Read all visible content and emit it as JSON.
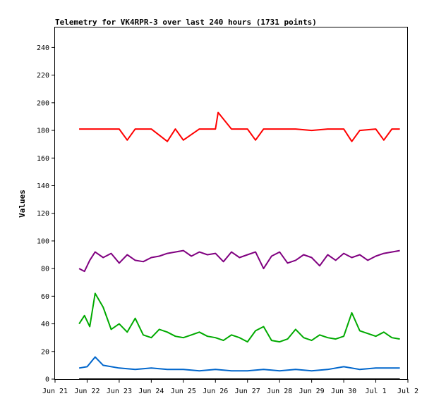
{
  "chart_data": {
    "type": "line",
    "title": "Telemetry for VK4RPR-3 over last 240 hours (1731 points)",
    "xlabel": "",
    "ylabel": "Values",
    "ylim": [
      0,
      255
    ],
    "yticks": [
      0,
      20,
      40,
      60,
      80,
      100,
      120,
      140,
      160,
      180,
      200,
      220,
      240
    ],
    "xlim": [
      "2024-06-21",
      "2024-07-02"
    ],
    "xticks": [
      "Jun 21",
      "Jun 22",
      "Jun 23",
      "Jun 24",
      "Jun 25",
      "Jun 26",
      "Jun 27",
      "Jun 28",
      "Jun 29",
      "Jun 30",
      "Jul 1",
      "Jul 2"
    ],
    "grid": false,
    "series": [
      {
        "color": "#ff0000",
        "x": [
          "2024-06-21T18:00",
          "2024-06-22T06:00",
          "2024-06-22T12:00",
          "2024-06-23T00:00",
          "2024-06-23T06:00",
          "2024-06-23T12:00",
          "2024-06-24T00:00",
          "2024-06-24T12:00",
          "2024-06-24T18:00",
          "2024-06-25T00:00",
          "2024-06-25T12:00",
          "2024-06-26T00:00",
          "2024-06-26T02:00",
          "2024-06-26T12:00",
          "2024-06-27T00:00",
          "2024-06-27T06:00",
          "2024-06-27T12:00",
          "2024-06-28T00:00",
          "2024-06-28T12:00",
          "2024-06-29T00:00",
          "2024-06-29T12:00",
          "2024-06-30T00:00",
          "2024-06-30T06:00",
          "2024-06-30T12:00",
          "2024-07-01T00:00",
          "2024-07-01T06:00",
          "2024-07-01T12:00",
          "2024-07-01T18:00"
        ],
        "y": [
          181,
          181,
          181,
          181,
          173,
          181,
          181,
          172,
          181,
          173,
          181,
          181,
          193,
          181,
          181,
          173,
          181,
          181,
          181,
          180,
          181,
          181,
          172,
          180,
          181,
          173,
          181,
          181
        ]
      },
      {
        "color": "#800080",
        "x": [
          "2024-06-21T18:00",
          "2024-06-21T22:00",
          "2024-06-22T02:00",
          "2024-06-22T06:00",
          "2024-06-22T12:00",
          "2024-06-22T18:00",
          "2024-06-23T00:00",
          "2024-06-23T06:00",
          "2024-06-23T12:00",
          "2024-06-23T18:00",
          "2024-06-24T00:00",
          "2024-06-24T06:00",
          "2024-06-24T12:00",
          "2024-06-24T18:00",
          "2024-06-25T00:00",
          "2024-06-25T06:00",
          "2024-06-25T12:00",
          "2024-06-25T18:00",
          "2024-06-26T00:00",
          "2024-06-26T06:00",
          "2024-06-26T12:00",
          "2024-06-26T18:00",
          "2024-06-27T00:00",
          "2024-06-27T06:00",
          "2024-06-27T12:00",
          "2024-06-27T18:00",
          "2024-06-28T00:00",
          "2024-06-28T06:00",
          "2024-06-28T12:00",
          "2024-06-28T18:00",
          "2024-06-29T00:00",
          "2024-06-29T06:00",
          "2024-06-29T12:00",
          "2024-06-29T18:00",
          "2024-06-30T00:00",
          "2024-06-30T06:00",
          "2024-06-30T12:00",
          "2024-06-30T18:00",
          "2024-07-01T00:00",
          "2024-07-01T06:00",
          "2024-07-01T12:00",
          "2024-07-01T18:00"
        ],
        "y": [
          80,
          78,
          86,
          92,
          88,
          91,
          84,
          90,
          86,
          85,
          88,
          89,
          91,
          92,
          93,
          89,
          92,
          90,
          91,
          85,
          92,
          88,
          90,
          92,
          80,
          89,
          92,
          84,
          86,
          90,
          88,
          82,
          90,
          86,
          91,
          88,
          90,
          86,
          89,
          91,
          92,
          93
        ]
      },
      {
        "color": "#00aa00",
        "x": [
          "2024-06-21T18:00",
          "2024-06-21T22:00",
          "2024-06-22T02:00",
          "2024-06-22T06:00",
          "2024-06-22T12:00",
          "2024-06-22T18:00",
          "2024-06-23T00:00",
          "2024-06-23T06:00",
          "2024-06-23T12:00",
          "2024-06-23T18:00",
          "2024-06-24T00:00",
          "2024-06-24T06:00",
          "2024-06-24T12:00",
          "2024-06-24T18:00",
          "2024-06-25T00:00",
          "2024-06-25T06:00",
          "2024-06-25T12:00",
          "2024-06-25T18:00",
          "2024-06-26T00:00",
          "2024-06-26T06:00",
          "2024-06-26T12:00",
          "2024-06-26T18:00",
          "2024-06-27T00:00",
          "2024-06-27T06:00",
          "2024-06-27T12:00",
          "2024-06-27T18:00",
          "2024-06-28T00:00",
          "2024-06-28T06:00",
          "2024-06-28T12:00",
          "2024-06-28T18:00",
          "2024-06-29T00:00",
          "2024-06-29T06:00",
          "2024-06-29T12:00",
          "2024-06-29T18:00",
          "2024-06-30T00:00",
          "2024-06-30T06:00",
          "2024-06-30T12:00",
          "2024-06-30T18:00",
          "2024-07-01T00:00",
          "2024-07-01T06:00",
          "2024-07-01T12:00",
          "2024-07-01T18:00"
        ],
        "y": [
          40,
          46,
          38,
          62,
          52,
          36,
          40,
          34,
          44,
          32,
          30,
          36,
          34,
          31,
          30,
          32,
          34,
          31,
          30,
          28,
          32,
          30,
          27,
          35,
          38,
          28,
          27,
          29,
          36,
          30,
          28,
          32,
          30,
          29,
          31,
          48,
          35,
          33,
          31,
          34,
          30,
          29
        ]
      },
      {
        "color": "#0066cc",
        "x": [
          "2024-06-21T18:00",
          "2024-06-22T00:00",
          "2024-06-22T06:00",
          "2024-06-22T12:00",
          "2024-06-23T00:00",
          "2024-06-23T12:00",
          "2024-06-24T00:00",
          "2024-06-24T12:00",
          "2024-06-25T00:00",
          "2024-06-25T12:00",
          "2024-06-26T00:00",
          "2024-06-26T12:00",
          "2024-06-27T00:00",
          "2024-06-27T12:00",
          "2024-06-28T00:00",
          "2024-06-28T12:00",
          "2024-06-29T00:00",
          "2024-06-29T12:00",
          "2024-06-30T00:00",
          "2024-06-30T12:00",
          "2024-07-01T00:00",
          "2024-07-01T12:00",
          "2024-07-01T18:00"
        ],
        "y": [
          8,
          9,
          16,
          10,
          8,
          7,
          8,
          7,
          7,
          6,
          7,
          6,
          6,
          7,
          6,
          7,
          6,
          7,
          9,
          7,
          8,
          8,
          8
        ]
      },
      {
        "color": "#000000",
        "x": [
          "2024-06-21T18:00",
          "2024-07-01T18:00"
        ],
        "y": [
          0,
          0
        ]
      }
    ]
  }
}
